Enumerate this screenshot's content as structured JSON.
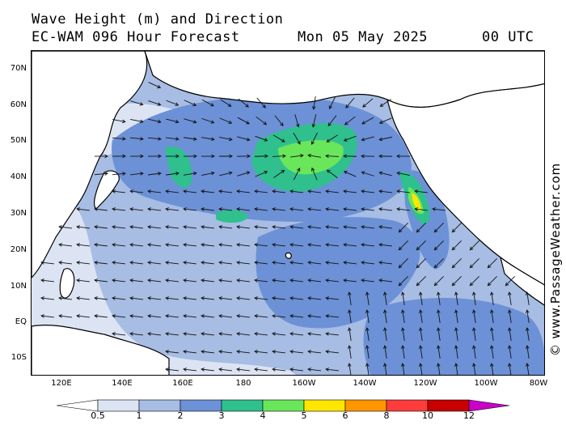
{
  "header": {
    "title_line1": "Wave Height (m) and Direction",
    "title_line2": "EC-WAM 096 Hour Forecast",
    "date": "Mon 05 May 2025",
    "time": "00 UTC"
  },
  "credit": "© www.PassageWeather.com",
  "axes": {
    "lat_labels": [
      "70N",
      "60N",
      "50N",
      "40N",
      "30N",
      "20N",
      "10N",
      "EQ",
      "10S"
    ],
    "lon_labels": [
      "120E",
      "140E",
      "160E",
      "180",
      "160W",
      "140W",
      "120W",
      "100W",
      "80W"
    ]
  },
  "legend": {
    "tick_labels": [
      "0.5",
      "1",
      "2",
      "3",
      "4",
      "5",
      "6",
      "8",
      "10",
      "12"
    ],
    "colors": [
      "#ffffff",
      "#dce4f4",
      "#a7bde4",
      "#6c91d6",
      "#2fc08e",
      "#6ae65a",
      "#ffe600",
      "#ff9600",
      "#ff3c3c",
      "#c80000",
      "#c800c8"
    ]
  },
  "map_colors": {
    "land": "#ffffff",
    "coast": "#000000",
    "borders": "#888888",
    "arrow": "#111111"
  }
}
